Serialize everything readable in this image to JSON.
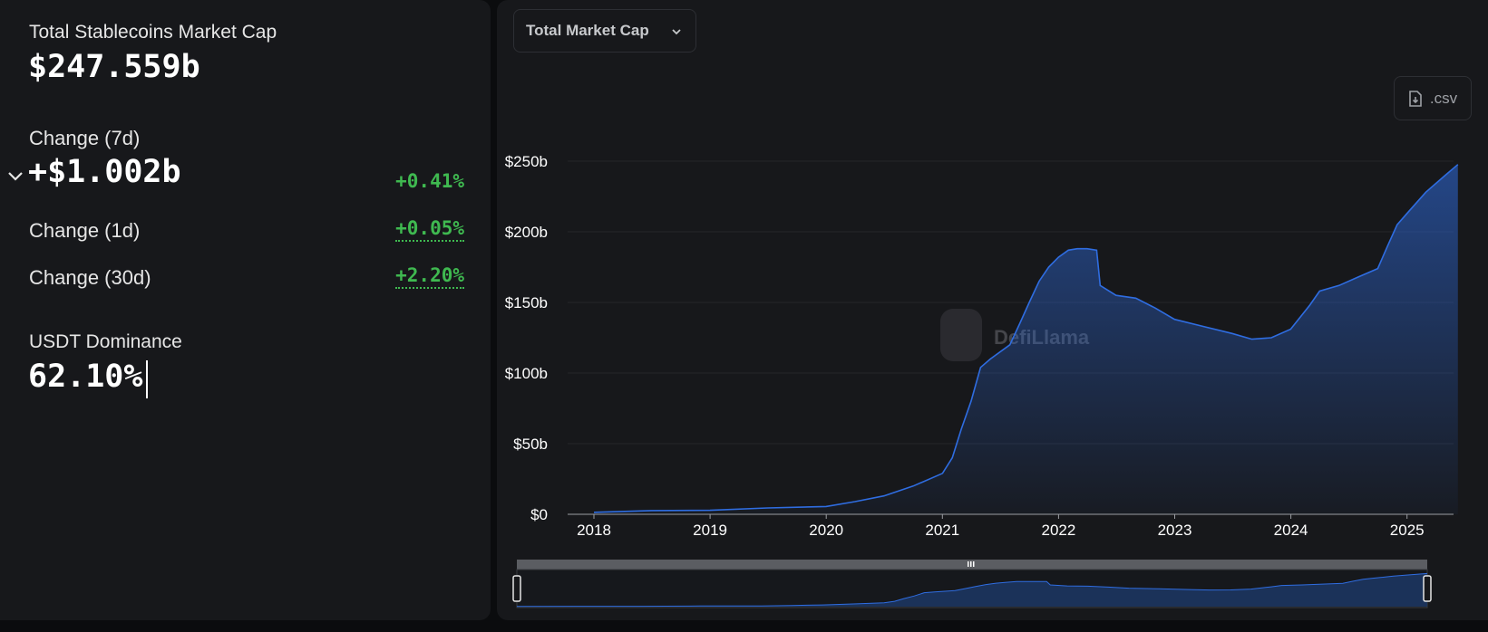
{
  "stats": {
    "total_label": "Total Stablecoins Market Cap",
    "total_value": "$247.559b",
    "change7d_label": "Change (7d)",
    "change7d_value": "+$1.002b",
    "change7d_pct": "+0.41%",
    "change1d_label": "Change (1d)",
    "change1d_pct": "+0.05%",
    "change30d_label": "Change (30d)",
    "change30d_pct": "+2.20%",
    "dominance_label": "USDT Dominance",
    "dominance_value": "62.10%"
  },
  "toolbar": {
    "metric_select": "Total Market Cap",
    "csv_label": ".csv"
  },
  "watermark": "DefiLlama",
  "colors": {
    "line": "#2f6de1",
    "positive": "#3fb950",
    "panel": "#17181b",
    "background": "#0b0c0e"
  },
  "chart_data": {
    "type": "area",
    "title": "",
    "xlabel": "",
    "ylabel": "",
    "x_tick_labels": [
      "2018",
      "2019",
      "2020",
      "2021",
      "2022",
      "2023",
      "2024",
      "2025"
    ],
    "y_tick_labels": [
      "$0",
      "$50b",
      "$100b",
      "$150b",
      "$200b",
      "$250b"
    ],
    "ylim": [
      0,
      250
    ],
    "y_unit": "billion USD",
    "grid": true,
    "series": [
      {
        "values": [
          [
            "2018-01-01",
            1.4
          ],
          [
            "2018-07-01",
            2.6
          ],
          [
            "2019-01-01",
            2.8
          ],
          [
            "2019-07-01",
            4.5
          ],
          [
            "2020-01-01",
            5.5
          ],
          [
            "2020-04-01",
            9.0
          ],
          [
            "2020-07-01",
            13
          ],
          [
            "2020-10-01",
            20
          ],
          [
            "2021-01-01",
            29
          ],
          [
            "2021-02-01",
            40
          ],
          [
            "2021-03-01",
            60
          ],
          [
            "2021-04-01",
            80
          ],
          [
            "2021-05-01",
            104
          ],
          [
            "2021-06-01",
            110
          ],
          [
            "2021-08-01",
            120
          ],
          [
            "2021-09-01",
            135
          ],
          [
            "2021-10-01",
            150
          ],
          [
            "2021-11-01",
            165
          ],
          [
            "2021-12-01",
            175
          ],
          [
            "2022-01-01",
            182
          ],
          [
            "2022-02-01",
            187
          ],
          [
            "2022-03-01",
            188
          ],
          [
            "2022-04-01",
            188
          ],
          [
            "2022-05-01",
            187
          ],
          [
            "2022-05-12",
            162
          ],
          [
            "2022-07-01",
            155
          ],
          [
            "2022-09-01",
            153
          ],
          [
            "2022-11-01",
            146
          ],
          [
            "2023-01-01",
            138
          ],
          [
            "2023-04-01",
            133
          ],
          [
            "2023-07-01",
            128
          ],
          [
            "2023-09-01",
            124
          ],
          [
            "2023-11-01",
            125
          ],
          [
            "2024-01-01",
            131
          ],
          [
            "2024-03-01",
            148
          ],
          [
            "2024-04-01",
            158
          ],
          [
            "2024-06-01",
            162
          ],
          [
            "2024-08-01",
            168
          ],
          [
            "2024-10-01",
            174
          ],
          [
            "2024-11-01",
            190
          ],
          [
            "2024-12-01",
            205
          ],
          [
            "2025-01-01",
            213
          ],
          [
            "2025-03-01",
            228
          ],
          [
            "2025-05-01",
            240
          ],
          [
            "2025-06-10",
            247.6
          ]
        ]
      }
    ]
  }
}
